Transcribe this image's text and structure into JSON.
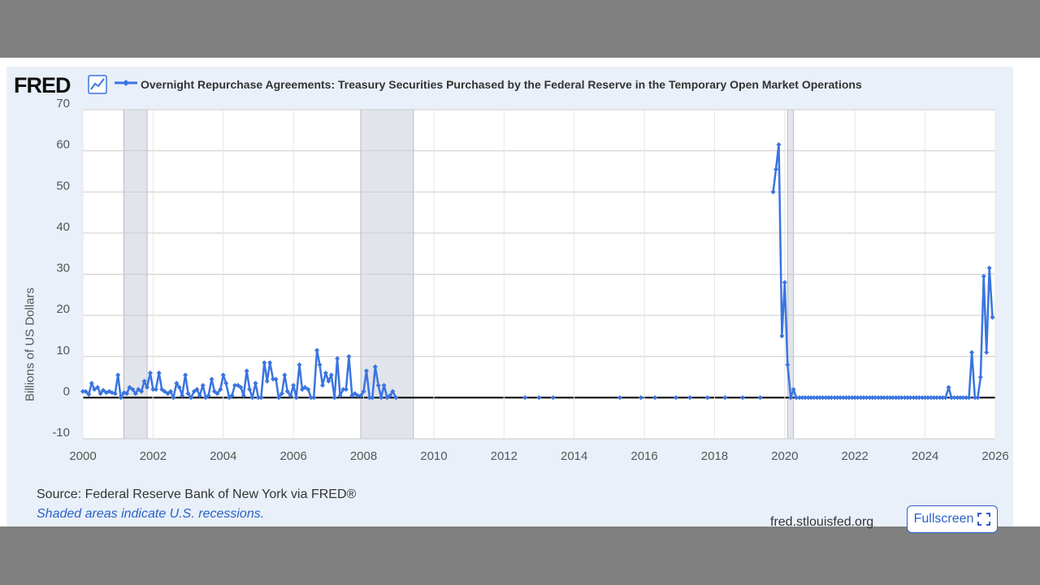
{
  "header": {
    "logo_text": "FRED",
    "logo_icon": "line-chart-icon"
  },
  "footer": {
    "source": "Source: Federal Reserve Bank of New York via FRED®",
    "recession_note": "Shaded areas indicate U.S. recessions.",
    "site": "fred.stlouisfed.org",
    "fullscreen_label": "Fullscreen",
    "fullscreen_icon": "expand-icon"
  },
  "colors": {
    "series": "#3a74e0",
    "recession": "#e1e4ea",
    "background": "#e9f0f9"
  },
  "chart_data": {
    "type": "line",
    "title": "Overnight Repurchase Agreements: Treasury Securities Purchased by the Federal Reserve in the Temporary Open Market Operations",
    "ylabel": "Billions of US Dollars",
    "xlabel": "",
    "xlim": [
      2000,
      2026
    ],
    "ylim": [
      -10,
      70
    ],
    "x_ticks": [
      "2000",
      "2002",
      "2004",
      "2006",
      "2008",
      "2010",
      "2012",
      "2014",
      "2016",
      "2018",
      "2020",
      "2022",
      "2024",
      "2026"
    ],
    "y_ticks": [
      "70",
      "60",
      "50",
      "40",
      "30",
      "20",
      "10",
      "0",
      "-10"
    ],
    "grid": true,
    "recessions": [
      [
        2001.17,
        2001.83
      ],
      [
        2007.92,
        2009.42
      ],
      [
        2020.08,
        2020.25
      ]
    ],
    "series": [
      {
        "name": "Overnight Repurchase Agreements: Treasury Securities Purchased by the Federal Reserve in the Temporary Open Market Operations",
        "segments": [
          [
            [
              2000.0,
              1.5
            ],
            [
              2000.08,
              1.5
            ],
            [
              2000.17,
              0.8
            ],
            [
              2000.25,
              3.5
            ],
            [
              2000.33,
              2.0
            ],
            [
              2000.42,
              2.5
            ],
            [
              2000.5,
              1.0
            ],
            [
              2000.58,
              1.8
            ],
            [
              2000.67,
              1.2
            ],
            [
              2000.75,
              1.5
            ],
            [
              2000.83,
              1.2
            ],
            [
              2000.92,
              1.0
            ],
            [
              2001.0,
              5.5
            ],
            [
              2001.08,
              0.0
            ],
            [
              2001.17,
              1.2
            ],
            [
              2001.25,
              1.0
            ],
            [
              2001.33,
              2.5
            ],
            [
              2001.42,
              2.0
            ],
            [
              2001.5,
              1.0
            ],
            [
              2001.58,
              2.0
            ],
            [
              2001.67,
              1.5
            ],
            [
              2001.75,
              4.0
            ],
            [
              2001.83,
              2.5
            ],
            [
              2001.92,
              6.0
            ],
            [
              2002.0,
              2.0
            ],
            [
              2002.08,
              2.0
            ],
            [
              2002.17,
              6.0
            ],
            [
              2002.25,
              2.0
            ],
            [
              2002.33,
              1.5
            ],
            [
              2002.42,
              1.0
            ],
            [
              2002.5,
              1.5
            ],
            [
              2002.58,
              0.0
            ],
            [
              2002.67,
              3.5
            ],
            [
              2002.75,
              2.5
            ],
            [
              2002.83,
              0.5
            ],
            [
              2002.92,
              5.5
            ],
            [
              2003.0,
              1.0
            ],
            [
              2003.08,
              0.0
            ],
            [
              2003.17,
              1.5
            ],
            [
              2003.25,
              2.0
            ],
            [
              2003.33,
              0.5
            ],
            [
              2003.42,
              3.0
            ],
            [
              2003.5,
              0.0
            ],
            [
              2003.58,
              0.5
            ],
            [
              2003.67,
              4.5
            ],
            [
              2003.75,
              1.5
            ],
            [
              2003.83,
              1.0
            ],
            [
              2003.92,
              2.0
            ],
            [
              2004.0,
              5.5
            ],
            [
              2004.08,
              3.5
            ],
            [
              2004.17,
              0.0
            ],
            [
              2004.25,
              0.5
            ],
            [
              2004.33,
              3.0
            ],
            [
              2004.42,
              3.0
            ],
            [
              2004.5,
              2.5
            ],
            [
              2004.58,
              0.5
            ],
            [
              2004.67,
              6.5
            ],
            [
              2004.75,
              2.0
            ],
            [
              2004.83,
              0.0
            ],
            [
              2004.92,
              3.5
            ],
            [
              2005.0,
              0.0
            ],
            [
              2005.08,
              0.0
            ],
            [
              2005.17,
              8.5
            ],
            [
              2005.25,
              4.0
            ],
            [
              2005.33,
              8.5
            ],
            [
              2005.42,
              4.5
            ],
            [
              2005.5,
              4.5
            ],
            [
              2005.58,
              0.0
            ],
            [
              2005.67,
              1.0
            ],
            [
              2005.75,
              5.5
            ],
            [
              2005.83,
              1.5
            ],
            [
              2005.92,
              0.5
            ],
            [
              2006.0,
              3.0
            ],
            [
              2006.08,
              0.0
            ],
            [
              2006.17,
              8.0
            ],
            [
              2006.25,
              2.0
            ],
            [
              2006.33,
              2.5
            ],
            [
              2006.42,
              2.0
            ],
            [
              2006.5,
              0.0
            ],
            [
              2006.58,
              0.0
            ],
            [
              2006.67,
              11.5
            ],
            [
              2006.75,
              8.0
            ],
            [
              2006.83,
              3.0
            ],
            [
              2006.92,
              6.0
            ],
            [
              2007.0,
              4.0
            ],
            [
              2007.08,
              5.5
            ],
            [
              2007.17,
              0.0
            ],
            [
              2007.25,
              9.5
            ],
            [
              2007.33,
              0.5
            ],
            [
              2007.42,
              2.0
            ],
            [
              2007.5,
              2.0
            ],
            [
              2007.58,
              10.0
            ],
            [
              2007.67,
              0.5
            ],
            [
              2007.75,
              1.0
            ],
            [
              2007.83,
              0.5
            ],
            [
              2007.92,
              0.5
            ],
            [
              2008.0,
              1.5
            ],
            [
              2008.08,
              6.5
            ],
            [
              2008.17,
              0.0
            ],
            [
              2008.25,
              0.0
            ],
            [
              2008.33,
              7.5
            ],
            [
              2008.42,
              3.0
            ],
            [
              2008.5,
              0.0
            ],
            [
              2008.58,
              3.0
            ],
            [
              2008.67,
              0.0
            ],
            [
              2008.75,
              0.5
            ],
            [
              2008.83,
              1.5
            ],
            [
              2008.92,
              0.0
            ]
          ],
          [
            [
              2012.6,
              0
            ]
          ],
          [
            [
              2013.0,
              0
            ]
          ],
          [
            [
              2013.4,
              0
            ]
          ],
          [
            [
              2015.3,
              0
            ]
          ],
          [
            [
              2015.9,
              0
            ]
          ],
          [
            [
              2016.3,
              0
            ]
          ],
          [
            [
              2016.9,
              0
            ]
          ],
          [
            [
              2017.3,
              0
            ]
          ],
          [
            [
              2017.8,
              0
            ]
          ],
          [
            [
              2018.3,
              0
            ]
          ],
          [
            [
              2018.8,
              0
            ]
          ],
          [
            [
              2019.3,
              0
            ]
          ],
          [
            [
              2019.67,
              50.0
            ],
            [
              2019.75,
              55.5
            ],
            [
              2019.83,
              61.5
            ],
            [
              2019.92,
              15.0
            ],
            [
              2020.0,
              28.0
            ],
            [
              2020.08,
              8.0
            ],
            [
              2020.17,
              0.0
            ],
            [
              2020.25,
              2.0
            ],
            [
              2020.33,
              0.0
            ],
            [
              2020.42,
              0.0
            ],
            [
              2020.5,
              0.0
            ],
            [
              2020.58,
              0.0
            ],
            [
              2020.67,
              0.0
            ],
            [
              2020.75,
              0.0
            ],
            [
              2020.83,
              0.0
            ],
            [
              2020.92,
              0.0
            ],
            [
              2021.0,
              0.0
            ],
            [
              2021.08,
              0.0
            ],
            [
              2021.17,
              0.0
            ],
            [
              2021.25,
              0.0
            ],
            [
              2021.33,
              0.0
            ],
            [
              2021.42,
              0.0
            ],
            [
              2021.5,
              0.0
            ],
            [
              2021.58,
              0.0
            ],
            [
              2021.67,
              0.0
            ],
            [
              2021.75,
              0.0
            ],
            [
              2021.83,
              0.0
            ],
            [
              2021.92,
              0.0
            ],
            [
              2022.0,
              0.0
            ],
            [
              2022.08,
              0.0
            ],
            [
              2022.17,
              0.0
            ],
            [
              2022.25,
              0.0
            ],
            [
              2022.33,
              0.0
            ],
            [
              2022.42,
              0.0
            ],
            [
              2022.5,
              0.0
            ],
            [
              2022.58,
              0.0
            ],
            [
              2022.67,
              0.0
            ],
            [
              2022.75,
              0.0
            ],
            [
              2022.83,
              0.0
            ],
            [
              2022.92,
              0.0
            ],
            [
              2023.0,
              0.0
            ],
            [
              2023.08,
              0.0
            ],
            [
              2023.17,
              0.0
            ],
            [
              2023.25,
              0.0
            ],
            [
              2023.33,
              0.0
            ],
            [
              2023.42,
              0.0
            ],
            [
              2023.5,
              0.0
            ],
            [
              2023.58,
              0.0
            ],
            [
              2023.67,
              0.0
            ],
            [
              2023.75,
              0.0
            ],
            [
              2023.83,
              0.0
            ],
            [
              2023.92,
              0.0
            ],
            [
              2024.0,
              0.0
            ],
            [
              2024.08,
              0.0
            ],
            [
              2024.17,
              0.0
            ],
            [
              2024.25,
              0.0
            ],
            [
              2024.33,
              0.0
            ],
            [
              2024.42,
              0.0
            ],
            [
              2024.5,
              0.0
            ],
            [
              2024.58,
              0.0
            ],
            [
              2024.67,
              2.5
            ],
            [
              2024.75,
              0.0
            ],
            [
              2024.83,
              0.0
            ],
            [
              2024.92,
              0.0
            ],
            [
              2025.0,
              0.0
            ],
            [
              2025.08,
              0.0
            ],
            [
              2025.17,
              0.0
            ],
            [
              2025.25,
              0.0
            ],
            [
              2025.33,
              11.0
            ],
            [
              2025.42,
              0.0
            ],
            [
              2025.5,
              0.0
            ],
            [
              2025.58,
              5.0
            ],
            [
              2025.67,
              29.5
            ],
            [
              2025.75,
              11.0
            ],
            [
              2025.83,
              31.5
            ],
            [
              2025.92,
              19.5
            ]
          ]
        ]
      }
    ]
  }
}
